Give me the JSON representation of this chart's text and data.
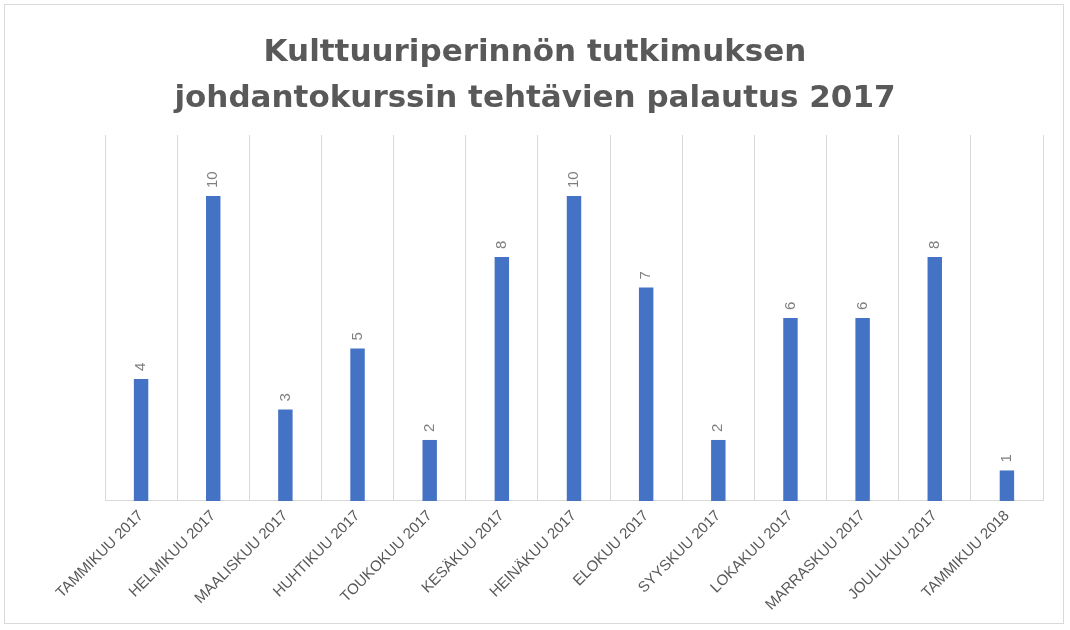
{
  "chart_data": {
    "type": "bar",
    "title": "Kulttuuriperinnön tutkimuksen johdantokurssin tehtävien palautus 2017",
    "categories": [
      "TAMMIKUU 2017",
      "HELMIKUU 2017",
      "MAALISKUU 2017",
      "HUHTIKUU 2017",
      "TOUKOKUU 2017",
      "KESÄKUU 2017",
      "HEINÄKUU 2017",
      "ELOKUU 2017",
      "SYYSKUU 2017",
      "LOKAKUU 2017",
      "MARRASKUU 2017",
      "JOULUKUU 2017",
      "TAMMIKUU 2018"
    ],
    "values": [
      4,
      10,
      3,
      5,
      2,
      8,
      10,
      7,
      2,
      6,
      6,
      8,
      1
    ],
    "color": "#4472c4",
    "data_labels": true,
    "grid": "x",
    "legend": false,
    "tick_labels": "x"
  }
}
